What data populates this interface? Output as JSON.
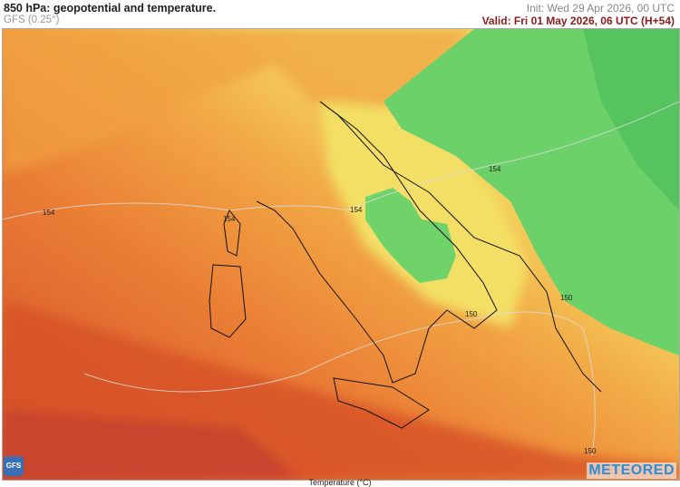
{
  "header": {
    "title": "850 hPa: geopotential and temperature.",
    "model": "GFS (0.25°)",
    "init": "Init: Wed 29 Apr 2026, 00 UTC",
    "valid": "Valid: Fri 01 May 2026, 06 UTC (H+54)"
  },
  "map": {
    "contour_labels": [
      "154",
      "154",
      "154",
      "154",
      "150",
      "150",
      "150"
    ],
    "colors": {
      "hot": "#d9542a",
      "warm": "#ee8a3a",
      "mild": "#f2b84a",
      "cool": "#f3e06a",
      "cold": "#6fd36a",
      "colder": "#4fc25a"
    }
  },
  "legend": {
    "label": "Temperature (°C)"
  },
  "logos": {
    "gfs": "GFS",
    "brand": "METEORED"
  }
}
